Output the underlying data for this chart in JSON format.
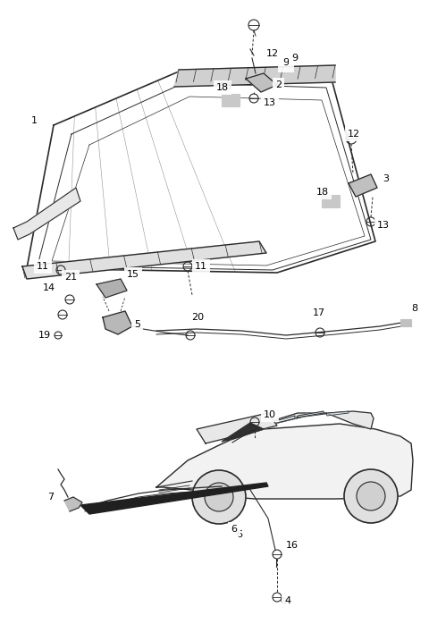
{
  "background_color": "#ffffff",
  "fig_width": 4.8,
  "fig_height": 6.98,
  "dpi": 100,
  "line_color": "#2a2a2a",
  "label_color": "#000000",
  "label_fontsize": 8.0
}
